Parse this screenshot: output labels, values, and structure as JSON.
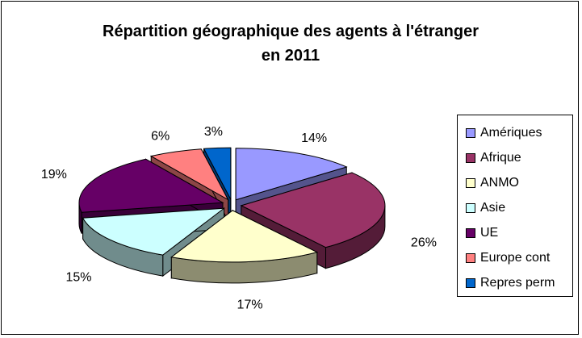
{
  "chart_data": {
    "type": "pie",
    "title_lines": [
      "Répartition géographique des agents à l'étranger",
      "en 2011"
    ],
    "categories": [
      "Amériques",
      "Afrique",
      "ANMO",
      "Asie",
      "UE",
      "Europe cont",
      "Repres perm"
    ],
    "values": [
      14,
      26,
      17,
      15,
      19,
      6,
      3
    ],
    "value_labels": [
      "14%",
      "26%",
      "17%",
      "15%",
      "19%",
      "6%",
      "3%"
    ],
    "colors": [
      "#9999FF",
      "#993366",
      "#FFFFCC",
      "#CCFFFF",
      "#660066",
      "#FF8080",
      "#0066CC"
    ],
    "legend_position": "right",
    "style": "3d-exploded"
  }
}
